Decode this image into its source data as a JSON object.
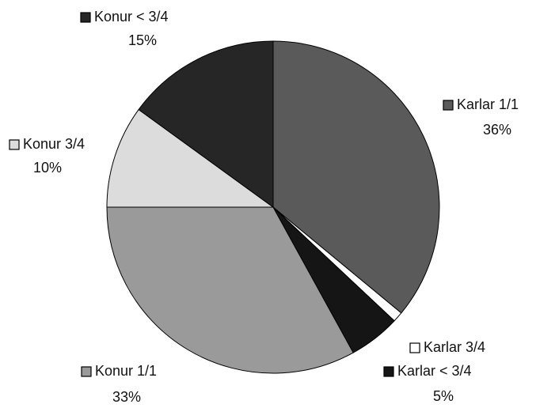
{
  "chart_data": {
    "type": "pie",
    "categories": [
      "Karlar 1/1",
      "Karlar 3/4",
      "Karlar < 3/4",
      "Konur 1/1",
      "Konur 3/4",
      "Konur < 3/4"
    ],
    "values": [
      36,
      1,
      5,
      33,
      10,
      15
    ],
    "value_labels": [
      "36%",
      null,
      "5%",
      "33%",
      "10%",
      "15%"
    ],
    "colors": [
      "#5a5a5a",
      "#ffffff",
      "#151515",
      "#9a9a9a",
      "#dcdcdc",
      "#262626"
    ]
  }
}
